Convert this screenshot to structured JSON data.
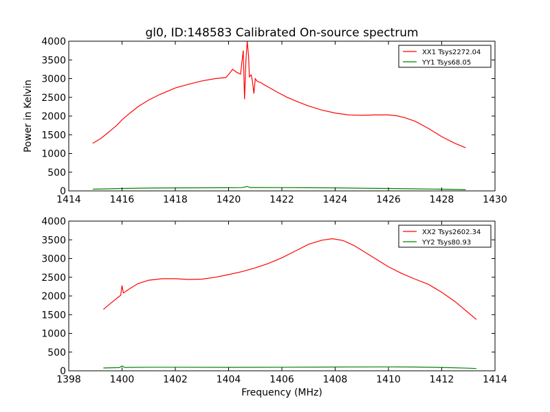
{
  "figure_title": "gl0, ID:148583 Calibrated On-source spectrum",
  "chart_data": [
    {
      "type": "line",
      "title": "gl0, ID:148583 Calibrated On-source spectrum",
      "xlabel": "",
      "ylabel": "Power in Kelvin",
      "xlim": [
        1414,
        1430
      ],
      "ylim": [
        0,
        4000
      ],
      "xticks": [
        1414,
        1416,
        1418,
        1420,
        1422,
        1424,
        1426,
        1428,
        1430
      ],
      "yticks": [
        0,
        500,
        1000,
        1500,
        2000,
        2500,
        3000,
        3500,
        4000
      ],
      "grid": false,
      "legend_position": "top-right",
      "series": [
        {
          "name": "XX1 Tsys2272.04",
          "color": "#ff0000",
          "x": [
            1414.9,
            1415.2,
            1415.5,
            1415.8,
            1416.0,
            1416.3,
            1416.6,
            1417.0,
            1417.4,
            1417.8,
            1418.0,
            1418.5,
            1419.0,
            1419.5,
            1419.9,
            1420.05,
            1420.15,
            1420.3,
            1420.45,
            1420.55,
            1420.6,
            1420.65,
            1420.7,
            1420.75,
            1420.78,
            1420.85,
            1420.9,
            1420.95,
            1421.0,
            1421.05,
            1421.1,
            1421.2,
            1421.3,
            1421.5,
            1421.8,
            1422.2,
            1422.6,
            1423.0,
            1423.5,
            1424.0,
            1424.5,
            1425.0,
            1425.5,
            1426.0,
            1426.3,
            1426.6,
            1427.0,
            1427.5,
            1428.0,
            1428.5,
            1428.9
          ],
          "values": [
            1270,
            1400,
            1570,
            1750,
            1900,
            2080,
            2250,
            2430,
            2570,
            2690,
            2750,
            2850,
            2940,
            3000,
            3030,
            3150,
            3250,
            3170,
            3120,
            3750,
            2450,
            3480,
            4000,
            3600,
            3050,
            3100,
            2900,
            2600,
            3000,
            2950,
            2920,
            2900,
            2850,
            2770,
            2650,
            2500,
            2380,
            2270,
            2160,
            2080,
            2030,
            2020,
            2030,
            2030,
            2010,
            1960,
            1860,
            1670,
            1450,
            1270,
            1150
          ]
        },
        {
          "name": "YY1 Tsys68.05",
          "color": "#008000",
          "x": [
            1414.9,
            1416.0,
            1417.0,
            1418.0,
            1419.0,
            1420.0,
            1420.5,
            1420.7,
            1420.8,
            1421.0,
            1422.0,
            1423.0,
            1424.0,
            1425.0,
            1426.0,
            1427.0,
            1428.0,
            1428.9
          ],
          "values": [
            45,
            65,
            75,
            80,
            82,
            85,
            88,
            120,
            92,
            90,
            88,
            85,
            80,
            72,
            65,
            55,
            45,
            35
          ]
        }
      ]
    },
    {
      "type": "line",
      "title": "",
      "xlabel": "Frequency (MHz)",
      "ylabel": "",
      "xlim": [
        1398,
        1414
      ],
      "ylim": [
        0,
        4000
      ],
      "xticks": [
        1398,
        1400,
        1402,
        1404,
        1406,
        1408,
        1410,
        1412,
        1414
      ],
      "yticks": [
        0,
        500,
        1000,
        1500,
        2000,
        2500,
        3000,
        3500,
        4000
      ],
      "grid": false,
      "legend_position": "top-right",
      "series": [
        {
          "name": "XX2 Tsys2602.34",
          "color": "#ff0000",
          "x": [
            1399.3,
            1399.6,
            1399.95,
            1400.0,
            1400.05,
            1400.3,
            1400.6,
            1401.0,
            1401.5,
            1402.0,
            1402.5,
            1403.0,
            1403.5,
            1404.0,
            1404.5,
            1405.0,
            1405.5,
            1406.0,
            1406.5,
            1407.0,
            1407.5,
            1407.9,
            1408.3,
            1408.7,
            1409.0,
            1409.5,
            1410.0,
            1410.5,
            1411.0,
            1411.5,
            1412.0,
            1412.5,
            1413.0,
            1413.3
          ],
          "values": [
            1640,
            1820,
            2020,
            2280,
            2080,
            2200,
            2330,
            2420,
            2460,
            2460,
            2440,
            2450,
            2500,
            2570,
            2650,
            2750,
            2870,
            3020,
            3200,
            3380,
            3490,
            3530,
            3480,
            3350,
            3220,
            3000,
            2780,
            2600,
            2450,
            2310,
            2100,
            1850,
            1550,
            1370
          ]
        },
        {
          "name": "YY2 Tsys80.93",
          "color": "#008000",
          "x": [
            1399.3,
            1399.9,
            1400.0,
            1400.1,
            1401.0,
            1402.0,
            1404.0,
            1406.0,
            1408.0,
            1410.0,
            1411.0,
            1412.0,
            1413.0,
            1413.3
          ],
          "values": [
            75,
            85,
            130,
            90,
            95,
            95,
            92,
            95,
            100,
            105,
            100,
            90,
            70,
            60
          ]
        }
      ]
    }
  ]
}
